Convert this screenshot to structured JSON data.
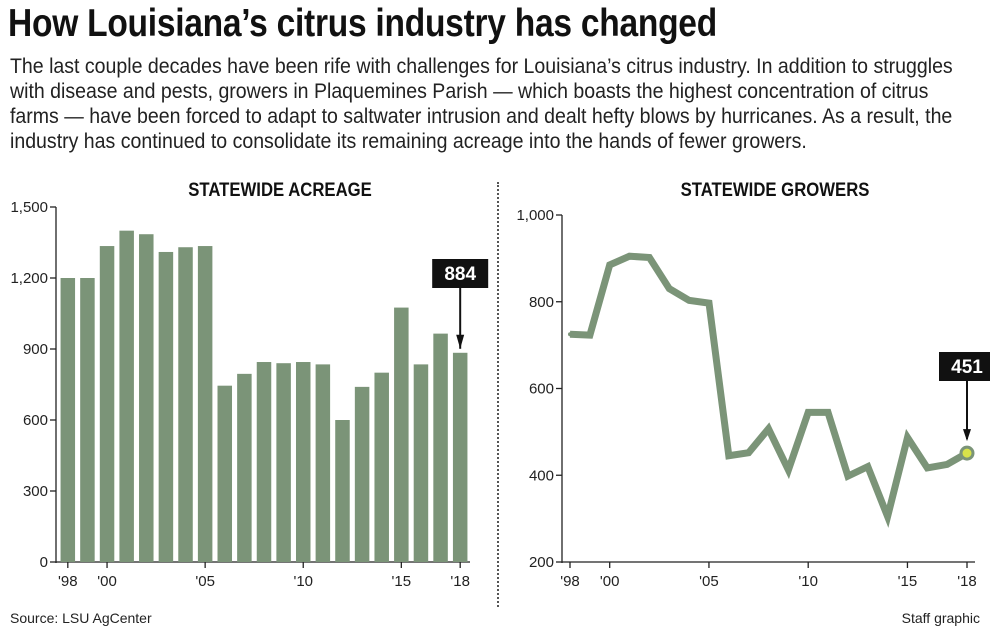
{
  "headline": "How Louisiana’s citrus industry has changed",
  "intro": "The last couple decades have been rife with challenges for Louisiana’s citrus industry. In addition to struggles with disease and pests, growers in Plaquemines Parish — which boasts the highest concentration of citrus farms — have been forced to adapt to saltwater intrusion and dealt hefty blows by hurricanes. As a result, the industry has continued to consolidate its remaining acreage into the hands of fewer growers.",
  "source": "Source: LSU AgCenter",
  "credit": "Staff graphic",
  "colors": {
    "series": "#7b9478",
    "callout": "#111111",
    "highlight": "#d8e34a"
  },
  "chart_data": [
    {
      "type": "bar",
      "title": "STATEWIDE ACREAGE",
      "x": [
        1998,
        1999,
        2000,
        2001,
        2002,
        2003,
        2004,
        2005,
        2006,
        2007,
        2008,
        2009,
        2010,
        2011,
        2012,
        2013,
        2014,
        2015,
        2016,
        2017,
        2018
      ],
      "values": [
        1200,
        1200,
        1335,
        1400,
        1385,
        1310,
        1330,
        1335,
        745,
        795,
        845,
        840,
        845,
        835,
        600,
        740,
        800,
        1075,
        835,
        965,
        884
      ],
      "ylim": [
        0,
        1500
      ],
      "yticks": [
        "0",
        "300",
        "600",
        "900",
        "1,200",
        "1,500"
      ],
      "xtick_labels": [
        "'98",
        "'00",
        "'05",
        "'10",
        "'15",
        "'18"
      ],
      "xtick_years": [
        1998,
        2000,
        2005,
        2010,
        2015,
        2018
      ],
      "callout": {
        "label": "884",
        "year": 2018
      },
      "grid": false
    },
    {
      "type": "line",
      "title": "STATEWIDE GROWERS",
      "x": [
        1998,
        1999,
        2000,
        2001,
        2002,
        2003,
        2004,
        2005,
        2006,
        2007,
        2008,
        2009,
        2010,
        2011,
        2012,
        2013,
        2014,
        2015,
        2016,
        2017,
        2018
      ],
      "values": [
        725,
        723,
        885,
        905,
        902,
        830,
        803,
        797,
        445,
        452,
        507,
        412,
        545,
        545,
        398,
        420,
        305,
        487,
        417,
        425,
        451
      ],
      "ylim": [
        200,
        1000
      ],
      "yticks": [
        "200",
        "400",
        "600",
        "800",
        "1,000"
      ],
      "xtick_labels": [
        "'98",
        "'00",
        "'05",
        "'10",
        "'15",
        "'18"
      ],
      "xtick_years": [
        1998,
        2000,
        2005,
        2010,
        2015,
        2018
      ],
      "callout": {
        "label": "451",
        "year": 2018
      },
      "grid": false
    }
  ]
}
